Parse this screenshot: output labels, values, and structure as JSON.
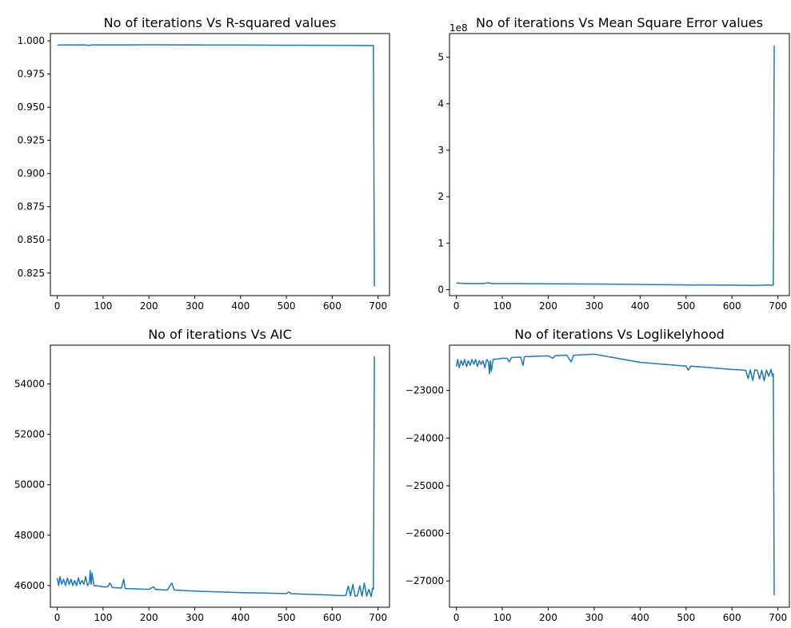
{
  "chart_data": [
    {
      "type": "line",
      "title": "No of iterations Vs R-squared values",
      "xlabel": "",
      "ylabel": "",
      "xlim": [
        -15,
        725
      ],
      "ylim": [
        0.808,
        1.0055
      ],
      "xticks": [
        0,
        100,
        200,
        300,
        400,
        500,
        600,
        700
      ],
      "xtick_labels": [
        "0",
        "100",
        "200",
        "300",
        "400",
        "500",
        "600",
        "700"
      ],
      "yticks": [
        0.825,
        0.85,
        0.875,
        0.9,
        0.925,
        0.95,
        0.975,
        1.0
      ],
      "ytick_labels": [
        "0.825",
        "0.850",
        "0.875",
        "0.900",
        "0.925",
        "0.950",
        "0.975",
        "1.000"
      ],
      "offset_text": "",
      "series": [
        {
          "x": [
            0,
            20,
            40,
            60,
            70,
            75,
            80,
            100,
            150,
            200,
            300,
            400,
            500,
            600,
            650,
            680,
            688,
            690,
            692
          ],
          "y": [
            0.9968,
            0.9969,
            0.9969,
            0.9969,
            0.9965,
            0.9969,
            0.9969,
            0.9969,
            0.9969,
            0.997,
            0.9969,
            0.9968,
            0.9967,
            0.9966,
            0.9965,
            0.9964,
            0.9965,
            0.9964,
            0.815
          ]
        }
      ],
      "grid": false
    },
    {
      "type": "line",
      "title": "No of iterations Vs Mean Square Error values",
      "xlabel": "",
      "ylabel": "",
      "xlim": [
        -15,
        725
      ],
      "ylim": [
        -0.13,
        5.51
      ],
      "xticks": [
        0,
        100,
        200,
        300,
        400,
        500,
        600,
        700
      ],
      "xtick_labels": [
        "0",
        "100",
        "200",
        "300",
        "400",
        "500",
        "600",
        "700"
      ],
      "yticks": [
        0,
        1,
        2,
        3,
        4,
        5
      ],
      "ytick_labels": [
        "0",
        "1",
        "2",
        "3",
        "4",
        "5"
      ],
      "offset_text": "1e8",
      "series": [
        {
          "x": [
            0,
            20,
            40,
            60,
            70,
            75,
            80,
            100,
            200,
            300,
            400,
            500,
            600,
            650,
            680,
            688,
            690,
            692
          ],
          "y": [
            0.14,
            0.13,
            0.13,
            0.13,
            0.15,
            0.13,
            0.13,
            0.13,
            0.125,
            0.12,
            0.11,
            0.1,
            0.095,
            0.09,
            0.1,
            0.09,
            0.1,
            5.25
          ]
        }
      ],
      "grid": false
    },
    {
      "type": "line",
      "title": "No of iterations Vs AIC",
      "xlabel": "",
      "ylabel": "",
      "xlim": [
        -15,
        725
      ],
      "ylim": [
        45140,
        55540
      ],
      "xticks": [
        0,
        100,
        200,
        300,
        400,
        500,
        600,
        700
      ],
      "xtick_labels": [
        "0",
        "100",
        "200",
        "300",
        "400",
        "500",
        "600",
        "700"
      ],
      "yticks": [
        46000,
        48000,
        50000,
        52000,
        54000
      ],
      "ytick_labels": [
        "46000",
        "48000",
        "50000",
        "52000",
        "54000"
      ],
      "offset_text": "",
      "series": [
        {
          "x": [
            0,
            3,
            6,
            10,
            14,
            18,
            22,
            26,
            30,
            34,
            38,
            42,
            46,
            50,
            54,
            58,
            62,
            66,
            70,
            72,
            74,
            76,
            80,
            90,
            100,
            110,
            115,
            120,
            140,
            145,
            148,
            150,
            160,
            180,
            200,
            210,
            215,
            220,
            240,
            250,
            255,
            260,
            280,
            300,
            350,
            400,
            450,
            500,
            505,
            510,
            550,
            600,
            620,
            630,
            635,
            640,
            645,
            650,
            655,
            660,
            665,
            670,
            675,
            680,
            685,
            688,
            690,
            692
          ],
          "y": [
            46300,
            46000,
            46350,
            46050,
            46250,
            46000,
            46300,
            46050,
            46250,
            46000,
            46200,
            46000,
            46300,
            46050,
            46200,
            46050,
            46350,
            46000,
            46100,
            46600,
            46050,
            46500,
            46000,
            45980,
            45950,
            45950,
            46100,
            45920,
            45900,
            46250,
            45900,
            45880,
            45880,
            45860,
            45850,
            45950,
            45840,
            45840,
            45820,
            46100,
            45830,
            45820,
            45800,
            45780,
            45750,
            45720,
            45700,
            45680,
            45750,
            45680,
            45650,
            45620,
            45600,
            45610,
            45980,
            45590,
            46050,
            45580,
            45600,
            45990,
            45580,
            46100,
            45580,
            45850,
            45560,
            45900,
            45850,
            55100
          ]
        }
      ],
      "grid": false
    },
    {
      "type": "line",
      "title": "No of iterations Vs Loglikelyhood",
      "xlabel": "",
      "ylabel": "",
      "xlim": [
        -15,
        725
      ],
      "ylim": [
        -27550,
        -22050
      ],
      "xticks": [
        0,
        100,
        200,
        300,
        400,
        500,
        600,
        700
      ],
      "xtick_labels": [
        "0",
        "100",
        "200",
        "300",
        "400",
        "500",
        "600",
        "700"
      ],
      "yticks": [
        -27000,
        -26000,
        -25000,
        -24000,
        -23000
      ],
      "ytick_labels": [
        "−27000",
        "−26000",
        "−25000",
        "−24000",
        "−23000"
      ],
      "offset_text": "",
      "series": [
        {
          "x": [
            0,
            3,
            6,
            10,
            14,
            18,
            22,
            26,
            30,
            34,
            38,
            42,
            46,
            50,
            54,
            58,
            62,
            66,
            70,
            72,
            74,
            76,
            80,
            90,
            100,
            110,
            115,
            120,
            140,
            145,
            148,
            150,
            160,
            180,
            200,
            210,
            215,
            220,
            240,
            250,
            255,
            260,
            280,
            300,
            350,
            400,
            450,
            500,
            505,
            510,
            550,
            600,
            620,
            630,
            635,
            640,
            645,
            650,
            655,
            660,
            665,
            670,
            675,
            680,
            685,
            688,
            690,
            692
          ],
          "y": [
            -22500,
            -22350,
            -22525,
            -22375,
            -22475,
            -22350,
            -22500,
            -22375,
            -22475,
            -22350,
            -22450,
            -22350,
            -22500,
            -22375,
            -22450,
            -22375,
            -22525,
            -22350,
            -22400,
            -22650,
            -22375,
            -22600,
            -22350,
            -22340,
            -22325,
            -22325,
            -22400,
            -22310,
            -22300,
            -22475,
            -22300,
            -22290,
            -22290,
            -22280,
            -22275,
            -22325,
            -22270,
            -22270,
            -22260,
            -22400,
            -22265,
            -22260,
            -22250,
            -22240,
            -22325,
            -22410,
            -22450,
            -22490,
            -22575,
            -22490,
            -22520,
            -22560,
            -22570,
            -22580,
            -22750,
            -22570,
            -22790,
            -22565,
            -22580,
            -22760,
            -22575,
            -22800,
            -22575,
            -22700,
            -22560,
            -22700,
            -22650,
            -27300
          ]
        }
      ],
      "grid": false
    }
  ]
}
